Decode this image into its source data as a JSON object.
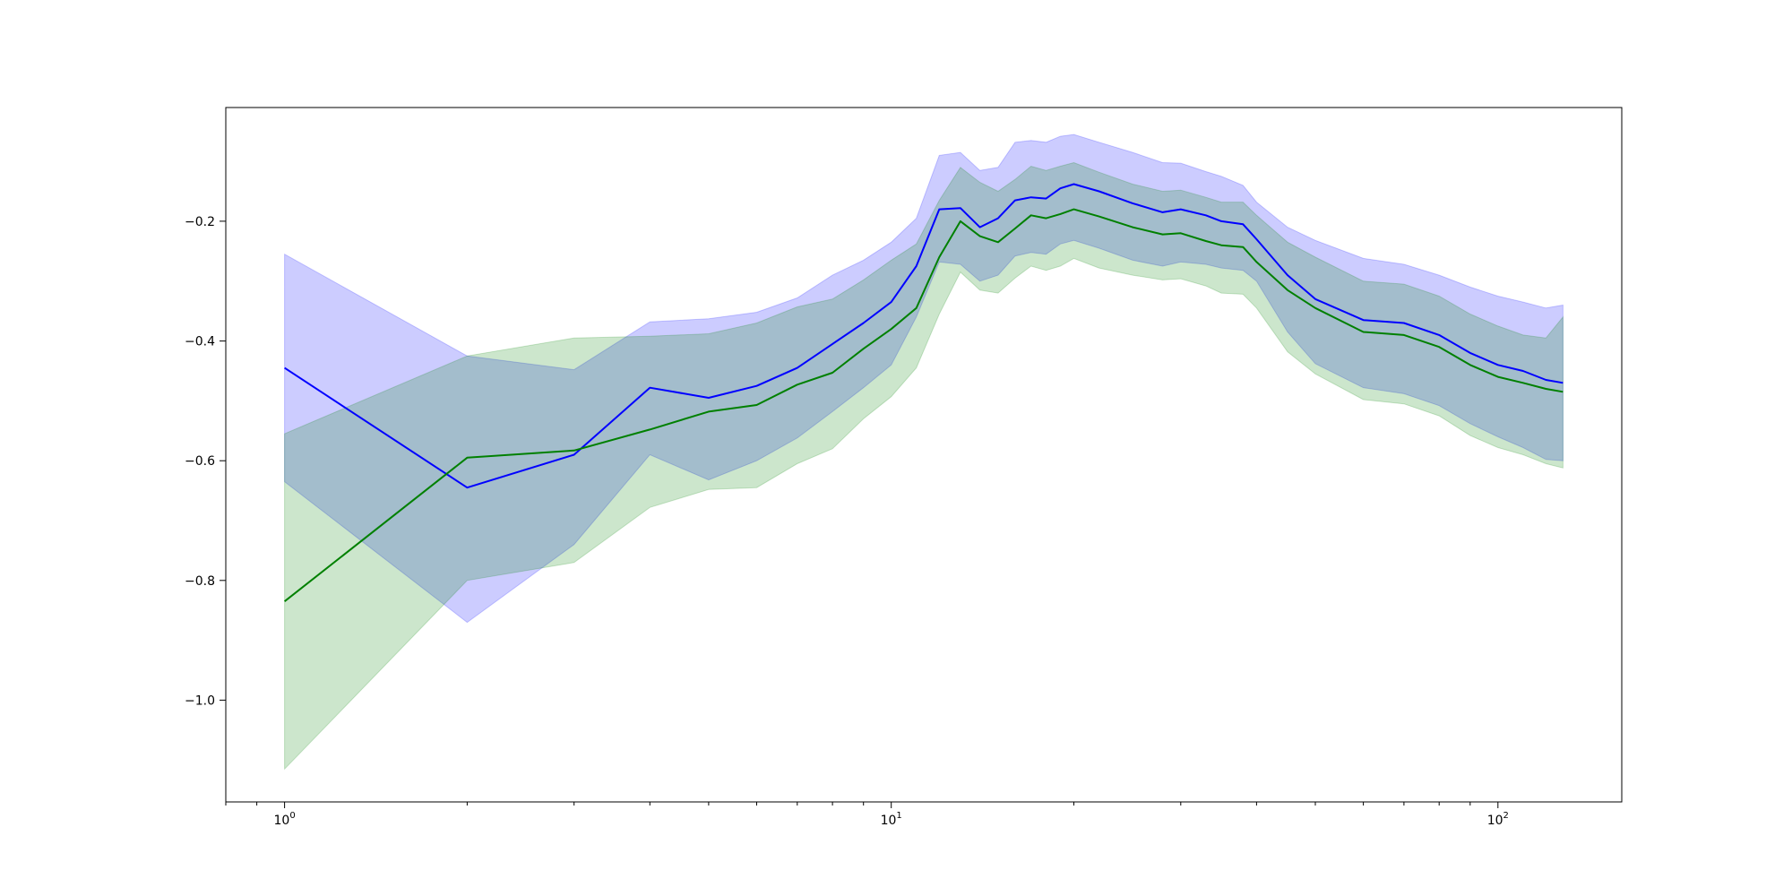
{
  "chart_data": {
    "type": "line",
    "title": "",
    "xlabel": "",
    "ylabel": "",
    "xscale": "log",
    "xlim": [
      0.8,
      160
    ],
    "ylim": [
      -1.17,
      -0.01
    ],
    "grid": false,
    "legend": "none",
    "x_ticks": [
      {
        "value": 1,
        "base": "10",
        "exp": "0"
      },
      {
        "value": 10,
        "base": "10",
        "exp": "1"
      },
      {
        "value": 100,
        "base": "10",
        "exp": "2"
      }
    ],
    "y_ticks": [
      {
        "value": -1.0,
        "label": "−1.0"
      },
      {
        "value": -0.8,
        "label": "−0.8"
      },
      {
        "value": -0.6,
        "label": "−0.6"
      },
      {
        "value": -0.4,
        "label": "−0.4"
      },
      {
        "value": -0.2,
        "label": "−0.2"
      }
    ],
    "series": [
      {
        "color": "#0000ff",
        "band_color": "#0000ff",
        "band_opacity": 0.2,
        "x": [
          1,
          2,
          3,
          4,
          5,
          6,
          7,
          8,
          9,
          10,
          11,
          12,
          13,
          14,
          15,
          16,
          17,
          18,
          19,
          20,
          22,
          25,
          28,
          30,
          33,
          35,
          38,
          40,
          45,
          50,
          60,
          70,
          80,
          90,
          100,
          110,
          120,
          128
        ],
        "y": [
          -0.445,
          -0.645,
          -0.59,
          -0.478,
          -0.495,
          -0.475,
          -0.445,
          -0.405,
          -0.37,
          -0.335,
          -0.275,
          -0.18,
          -0.178,
          -0.21,
          -0.195,
          -0.165,
          -0.16,
          -0.162,
          -0.145,
          -0.138,
          -0.15,
          -0.17,
          -0.185,
          -0.18,
          -0.19,
          -0.2,
          -0.205,
          -0.23,
          -0.29,
          -0.33,
          -0.365,
          -0.37,
          -0.39,
          -0.42,
          -0.44,
          -0.45,
          -0.465,
          -0.47
        ],
        "upper": [
          -0.255,
          -0.425,
          -0.448,
          -0.368,
          -0.363,
          -0.352,
          -0.328,
          -0.29,
          -0.265,
          -0.235,
          -0.195,
          -0.09,
          -0.085,
          -0.115,
          -0.11,
          -0.068,
          -0.065,
          -0.068,
          -0.058,
          -0.055,
          -0.068,
          -0.085,
          -0.102,
          -0.103,
          -0.117,
          -0.125,
          -0.14,
          -0.168,
          -0.21,
          -0.232,
          -0.262,
          -0.272,
          -0.29,
          -0.31,
          -0.325,
          -0.335,
          -0.345,
          -0.34
        ],
        "lower": [
          -0.635,
          -0.87,
          -0.74,
          -0.59,
          -0.632,
          -0.6,
          -0.562,
          -0.518,
          -0.478,
          -0.44,
          -0.36,
          -0.268,
          -0.272,
          -0.3,
          -0.29,
          -0.258,
          -0.252,
          -0.255,
          -0.238,
          -0.232,
          -0.245,
          -0.265,
          -0.275,
          -0.268,
          -0.272,
          -0.278,
          -0.282,
          -0.3,
          -0.385,
          -0.438,
          -0.478,
          -0.488,
          -0.508,
          -0.538,
          -0.56,
          -0.578,
          -0.598,
          -0.6
        ]
      },
      {
        "color": "#008000",
        "band_color": "#008000",
        "band_opacity": 0.2,
        "x": [
          1,
          2,
          3,
          4,
          5,
          6,
          7,
          8,
          9,
          10,
          11,
          12,
          13,
          14,
          15,
          16,
          17,
          18,
          19,
          20,
          22,
          25,
          28,
          30,
          33,
          35,
          38,
          40,
          45,
          50,
          60,
          70,
          80,
          90,
          100,
          110,
          120,
          128
        ],
        "y": [
          -0.835,
          -0.595,
          -0.583,
          -0.548,
          -0.518,
          -0.507,
          -0.473,
          -0.453,
          -0.413,
          -0.38,
          -0.345,
          -0.26,
          -0.2,
          -0.225,
          -0.235,
          -0.212,
          -0.19,
          -0.195,
          -0.188,
          -0.18,
          -0.192,
          -0.21,
          -0.222,
          -0.22,
          -0.233,
          -0.24,
          -0.243,
          -0.268,
          -0.315,
          -0.345,
          -0.385,
          -0.39,
          -0.41,
          -0.44,
          -0.46,
          -0.47,
          -0.48,
          -0.485
        ],
        "upper": [
          -0.555,
          -0.425,
          -0.395,
          -0.392,
          -0.388,
          -0.37,
          -0.343,
          -0.33,
          -0.298,
          -0.265,
          -0.238,
          -0.165,
          -0.11,
          -0.135,
          -0.15,
          -0.13,
          -0.108,
          -0.115,
          -0.108,
          -0.102,
          -0.118,
          -0.138,
          -0.15,
          -0.148,
          -0.16,
          -0.168,
          -0.168,
          -0.19,
          -0.235,
          -0.26,
          -0.3,
          -0.305,
          -0.325,
          -0.355,
          -0.375,
          -0.39,
          -0.395,
          -0.36
        ],
        "lower": [
          -1.115,
          -0.8,
          -0.77,
          -0.678,
          -0.648,
          -0.645,
          -0.605,
          -0.58,
          -0.53,
          -0.493,
          -0.445,
          -0.355,
          -0.285,
          -0.315,
          -0.32,
          -0.295,
          -0.275,
          -0.282,
          -0.275,
          -0.262,
          -0.278,
          -0.29,
          -0.298,
          -0.296,
          -0.308,
          -0.32,
          -0.322,
          -0.345,
          -0.418,
          -0.455,
          -0.498,
          -0.505,
          -0.525,
          -0.558,
          -0.578,
          -0.59,
          -0.605,
          -0.612
        ]
      }
    ]
  }
}
